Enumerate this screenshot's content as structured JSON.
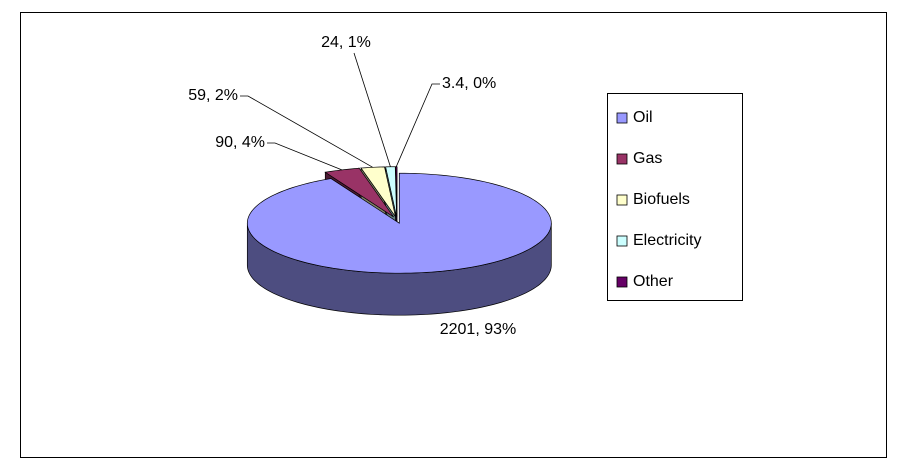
{
  "chart_data": {
    "type": "pie3d",
    "categories": [
      "Oil",
      "Gas",
      "Biofuels",
      "Electricity",
      "Other"
    ],
    "values": [
      2201,
      90,
      59,
      24,
      3.4
    ],
    "value_labels": [
      "2201, 93%",
      "90, 4%",
      "59, 2%",
      "24, 1%",
      "3.4, 0%"
    ],
    "colors": [
      "#9999ff",
      "#993366",
      "#ffffcc",
      "#ccffff",
      "#660066"
    ],
    "legend": "right"
  }
}
